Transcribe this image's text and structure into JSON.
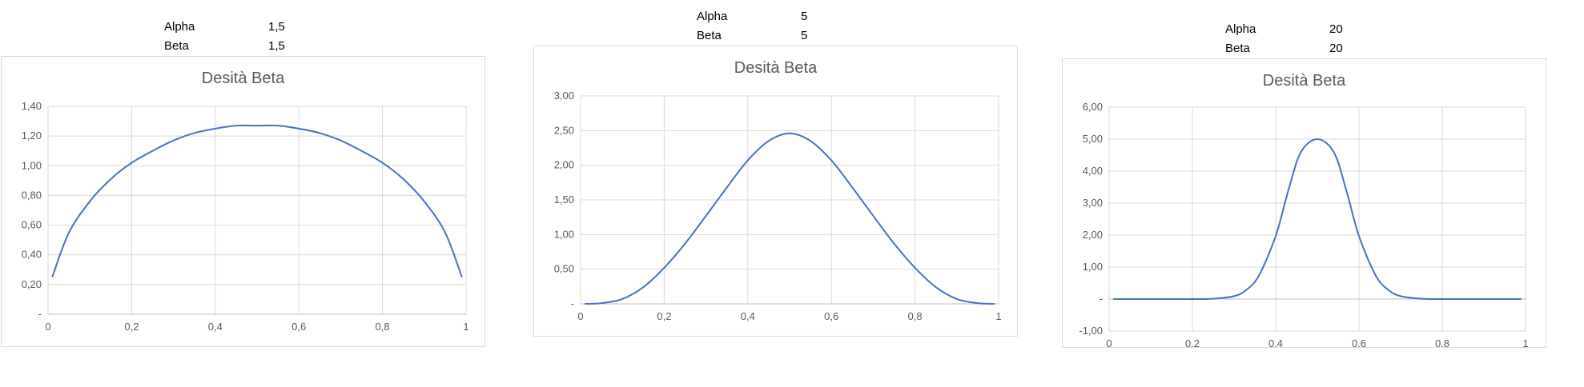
{
  "params": [
    {
      "alpha_label": "Alpha",
      "alpha_value": "1,5",
      "beta_label": "Beta",
      "beta_value": "1,5"
    },
    {
      "alpha_label": "Alpha",
      "alpha_value": "5",
      "beta_label": "Beta",
      "beta_value": "5"
    },
    {
      "alpha_label": "Alpha",
      "alpha_value": "20",
      "beta_label": "Beta",
      "beta_value": "20"
    }
  ],
  "colors": {
    "series": "#4472c4",
    "grid": "#d9d9d9",
    "text": "#595959"
  },
  "chart_data": [
    {
      "type": "line",
      "title": "Desità Beta",
      "alpha": 1.5,
      "beta": 1.5,
      "xlim": [
        0,
        1
      ],
      "ylim": [
        0,
        1.4
      ],
      "xticks": [
        "0",
        "0,2",
        "0,4",
        "0,6",
        "0,8",
        "1"
      ],
      "yticks": [
        "-",
        "0,20",
        "0,40",
        "0,60",
        "0,80",
        "1,00",
        "1,20",
        "1,40"
      ],
      "grid": true,
      "series": [
        {
          "x": [
            0.01,
            0.05,
            0.1,
            0.15,
            0.2,
            0.25,
            0.3,
            0.35,
            0.4,
            0.45,
            0.5,
            0.55,
            0.6,
            0.65,
            0.7,
            0.75,
            0.8,
            0.85,
            0.9,
            0.95,
            0.99
          ],
          "values": [
            0.25,
            0.55,
            0.76,
            0.91,
            1.02,
            1.1,
            1.17,
            1.22,
            1.25,
            1.27,
            1.27,
            1.27,
            1.25,
            1.22,
            1.17,
            1.1,
            1.02,
            0.91,
            0.76,
            0.55,
            0.25
          ]
        }
      ]
    },
    {
      "type": "line",
      "title": "Desità Beta",
      "alpha": 5,
      "beta": 5,
      "xlim": [
        0,
        1
      ],
      "ylim": [
        0,
        3
      ],
      "xticks": [
        "0",
        "0,2",
        "0,4",
        "0,6",
        "0,8",
        "1"
      ],
      "yticks": [
        "-",
        "0,50",
        "1,00",
        "1,50",
        "2,00",
        "2,50",
        "3,00"
      ],
      "grid": true,
      "series": [
        {
          "x": [
            0.01,
            0.05,
            0.1,
            0.15,
            0.2,
            0.25,
            0.3,
            0.35,
            0.4,
            0.45,
            0.5,
            0.55,
            0.6,
            0.65,
            0.7,
            0.75,
            0.8,
            0.85,
            0.9,
            0.95,
            0.99
          ],
          "values": [
            0.0,
            0.01,
            0.07,
            0.24,
            0.52,
            0.87,
            1.27,
            1.68,
            2.07,
            2.35,
            2.46,
            2.35,
            2.07,
            1.68,
            1.27,
            0.87,
            0.52,
            0.24,
            0.07,
            0.01,
            0.0
          ]
        }
      ]
    },
    {
      "type": "line",
      "title": "Desità Beta",
      "alpha": 20,
      "beta": 20,
      "xlim": [
        0,
        1
      ],
      "ylim": [
        -1,
        6
      ],
      "xticks": [
        "0",
        "0,2",
        "0,4",
        "0,6",
        "0,8",
        "1"
      ],
      "yticks": [
        "-1,00",
        "-",
        "1,00",
        "2,00",
        "3,00",
        "4,00",
        "5,00",
        "6,00"
      ],
      "grid": true,
      "series": [
        {
          "x": [
            0.01,
            0.1,
            0.2,
            0.25,
            0.3,
            0.33,
            0.36,
            0.4,
            0.43,
            0.46,
            0.5,
            0.54,
            0.57,
            0.6,
            0.64,
            0.67,
            0.7,
            0.75,
            0.8,
            0.9,
            0.99
          ],
          "values": [
            0.0,
            0.0,
            0.0,
            0.01,
            0.09,
            0.29,
            0.74,
            1.97,
            3.38,
            4.58,
            5.0,
            4.58,
            3.38,
            1.97,
            0.74,
            0.29,
            0.09,
            0.01,
            0.0,
            0.0,
            0.0
          ]
        }
      ]
    }
  ]
}
